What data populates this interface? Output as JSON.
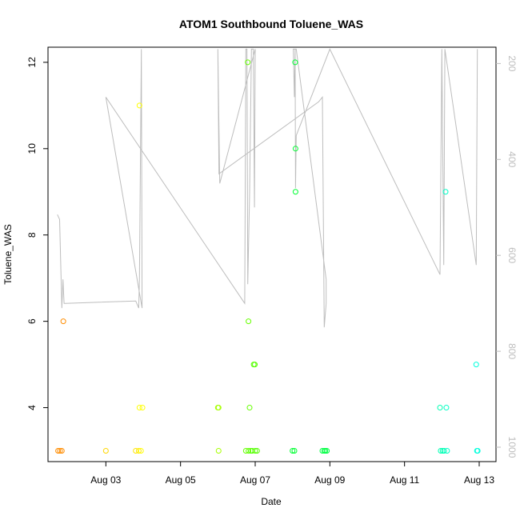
{
  "chart_data": {
    "type": "scatter",
    "title": "ATOM1 Southbound Toluene_WAS",
    "xlabel": "Date",
    "ylabel": "Toluene_WAS",
    "x_tick_labels": [
      "Aug 03",
      "Aug 05",
      "Aug 07",
      "Aug 09",
      "Aug 11",
      "Aug 13"
    ],
    "x_tick_values": [
      3,
      5,
      7,
      9,
      11,
      13
    ],
    "xlim": [
      1.45,
      13.45
    ],
    "ylim": [
      2.75,
      12.35
    ],
    "y_ticks": [
      4,
      6,
      8,
      10,
      12
    ],
    "secondary_axis": {
      "ticks": [
        200,
        400,
        600,
        800,
        1000
      ],
      "range_top": 166,
      "range_bottom": 1030,
      "color": "#bdbdbd"
    },
    "points": [
      {
        "x": 1.72,
        "y": 3,
        "color": "#ff8c00"
      },
      {
        "x": 1.77,
        "y": 3,
        "color": "#ff8c00"
      },
      {
        "x": 1.82,
        "y": 3,
        "color": "#ff8c00"
      },
      {
        "x": 1.86,
        "y": 6,
        "color": "#ff8c00"
      },
      {
        "x": 3.0,
        "y": 3,
        "color": "#ffd700"
      },
      {
        "x": 3.8,
        "y": 3,
        "color": "#ffe600"
      },
      {
        "x": 3.88,
        "y": 3,
        "color": "#ffe600"
      },
      {
        "x": 3.94,
        "y": 3,
        "color": "#ffff00"
      },
      {
        "x": 3.9,
        "y": 11,
        "color": "#ffff00"
      },
      {
        "x": 3.9,
        "y": 4,
        "color": "#ffff00"
      },
      {
        "x": 3.98,
        "y": 4,
        "color": "#ffff00"
      },
      {
        "x": 6.0,
        "y": 4,
        "color": "#a6ff00"
      },
      {
        "x": 6.02,
        "y": 4,
        "color": "#a6ff00"
      },
      {
        "x": 6.02,
        "y": 3,
        "color": "#a6ff00"
      },
      {
        "x": 6.75,
        "y": 3,
        "color": "#66ff00"
      },
      {
        "x": 6.8,
        "y": 12,
        "color": "#66ff00"
      },
      {
        "x": 6.82,
        "y": 3,
        "color": "#66ff00"
      },
      {
        "x": 6.85,
        "y": 4,
        "color": "#66ff00"
      },
      {
        "x": 6.82,
        "y": 6,
        "color": "#66ff00"
      },
      {
        "x": 6.88,
        "y": 3,
        "color": "#55ff00"
      },
      {
        "x": 6.92,
        "y": 3,
        "color": "#55ff00"
      },
      {
        "x": 6.96,
        "y": 5,
        "color": "#55ff00"
      },
      {
        "x": 6.99,
        "y": 5,
        "color": "#55ff00"
      },
      {
        "x": 7.0,
        "y": 3,
        "color": "#55ff00"
      },
      {
        "x": 7.05,
        "y": 3,
        "color": "#55ff00"
      },
      {
        "x": 8.0,
        "y": 3,
        "color": "#00ff33"
      },
      {
        "x": 8.05,
        "y": 3,
        "color": "#00ff33"
      },
      {
        "x": 8.07,
        "y": 12,
        "color": "#00ff33"
      },
      {
        "x": 8.08,
        "y": 10,
        "color": "#00ff33"
      },
      {
        "x": 8.08,
        "y": 9,
        "color": "#00ff33"
      },
      {
        "x": 8.8,
        "y": 3,
        "color": "#00ff44"
      },
      {
        "x": 8.85,
        "y": 3,
        "color": "#00ff44"
      },
      {
        "x": 8.88,
        "y": 3,
        "color": "#00ff44"
      },
      {
        "x": 8.92,
        "y": 3,
        "color": "#00ff44"
      },
      {
        "x": 11.95,
        "y": 4,
        "color": "#00ffb3"
      },
      {
        "x": 11.97,
        "y": 3,
        "color": "#00ffb3"
      },
      {
        "x": 12.02,
        "y": 3,
        "color": "#00ffb3"
      },
      {
        "x": 12.06,
        "y": 3,
        "color": "#00ffb3"
      },
      {
        "x": 12.1,
        "y": 9,
        "color": "#00ffc8"
      },
      {
        "x": 12.12,
        "y": 4,
        "color": "#00ffc8"
      },
      {
        "x": 12.14,
        "y": 3,
        "color": "#00ffc8"
      },
      {
        "x": 12.92,
        "y": 5,
        "color": "#00ffdd"
      },
      {
        "x": 12.94,
        "y": 3,
        "color": "#00ffdd"
      },
      {
        "x": 12.96,
        "y": 3,
        "color": "#00ffdd"
      }
    ],
    "secondary_line": {
      "color": "#bdbdbd",
      "points": [
        [
          1.7,
          515
        ],
        [
          1.76,
          525
        ],
        [
          1.82,
          710
        ],
        [
          1.85,
          650
        ],
        [
          1.88,
          700
        ],
        [
          1.92,
          700
        ],
        [
          3.8,
          695
        ],
        [
          3.88,
          710
        ],
        [
          3.9,
          650
        ],
        [
          3.95,
          170
        ],
        [
          3.97,
          710
        ],
        [
          3.0,
          270
        ],
        [
          6.72,
          700
        ],
        [
          6.75,
          170
        ],
        [
          6.78,
          170
        ],
        [
          6.8,
          660
        ],
        [
          6.85,
          470
        ],
        [
          6.9,
          170
        ],
        [
          6.95,
          170
        ],
        [
          6.98,
          500
        ],
        [
          7.0,
          170
        ],
        [
          6.05,
          450
        ],
        [
          6.0,
          170
        ],
        [
          6.03,
          430
        ],
        [
          8.7,
          280
        ],
        [
          8.8,
          270
        ],
        [
          8.85,
          750
        ],
        [
          8.9,
          700
        ],
        [
          8.9,
          650
        ],
        [
          8.1,
          170
        ],
        [
          8.02,
          170
        ],
        [
          8.05,
          270
        ],
        [
          8.07,
          170
        ],
        [
          8.08,
          460
        ],
        [
          8.1,
          350
        ],
        [
          9.0,
          170
        ],
        [
          11.95,
          640
        ],
        [
          12.0,
          170
        ],
        [
          12.05,
          620
        ],
        [
          12.08,
          170
        ],
        [
          12.92,
          620
        ],
        [
          12.95,
          170
        ]
      ]
    }
  }
}
